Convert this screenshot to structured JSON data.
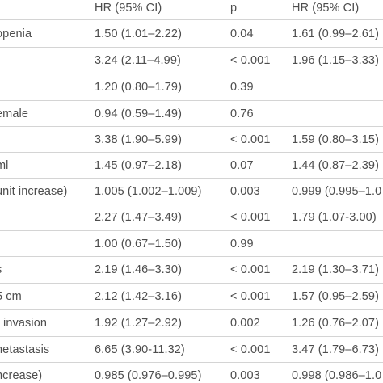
{
  "table": {
    "headers": [
      "",
      "HR (95% CI)",
      "p",
      "HR (95% CI)"
    ],
    "rows": [
      [
        "openia",
        "1.50 (1.01–2.22)",
        "0.04",
        "1.61 (0.99–2.61)"
      ],
      [
        "",
        "3.24 (2.11–4.99)",
        "< 0.001",
        "1.96 (1.15–3.33)"
      ],
      [
        "",
        "1.20 (0.80–1.79)",
        "0.39",
        ""
      ],
      [
        "emale",
        "0.94 (0.59–1.49)",
        "0.76",
        ""
      ],
      [
        "",
        "3.38 (1.90–5.99)",
        "< 0.001",
        "1.59 (0.80–3.15)"
      ],
      [
        "ml",
        "1.45 (0.97–2.18)",
        "0.07",
        "1.44 (0.87–2.39)"
      ],
      [
        "unit increase)",
        "1.005 (1.002–1.009)",
        "0.003",
        "0.999 (0.995–1.0"
      ],
      [
        "",
        "2.27 (1.47–3.49)",
        "< 0.001",
        "1.79 (1.07-3.00)"
      ],
      [
        "t",
        "1.00 (0.67–1.50)",
        "0.99",
        ""
      ],
      [
        "s",
        "2.19 (1.46–3.30)",
        "< 0.001",
        "2.19 (1.30–3.71)"
      ],
      [
        "5 cm",
        "2.12 (1.42–3.16)",
        "< 0.001",
        "1.57 (0.95–2.59)"
      ],
      [
        "r invasion",
        "1.92 (1.27–2.92)",
        "0.002",
        "1.26 (0.76–2.07)"
      ],
      [
        "netastasis",
        "6.65 (3.90-11.32)",
        "< 0.001",
        "3.47 (1.79–6.73)"
      ],
      [
        "ncrease)",
        "0.985 (0.976–0.995)",
        "0.003",
        "0.998 (0.986–1.0"
      ]
    ]
  }
}
